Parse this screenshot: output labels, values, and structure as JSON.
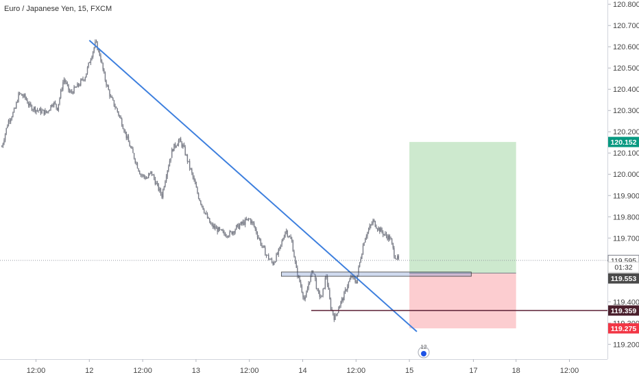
{
  "chart_data": {
    "type": "candlestick",
    "title": "Euro / Japanese Yen, 15, FXCM",
    "ylim": [
      119.13,
      120.82
    ],
    "y_ticks": [
      "120.800",
      "120.700",
      "120.600",
      "120.500",
      "120.400",
      "120.300",
      "120.200",
      "120.100",
      "120.000",
      "119.900",
      "119.800",
      "119.700",
      "119.600",
      "119.500",
      "119.400",
      "119.300",
      "119.200"
    ],
    "x_ticks": [
      {
        "label": "12:00",
        "t": 0.5
      },
      {
        "label": "12",
        "t": 1.0
      },
      {
        "label": "12:00",
        "t": 1.5
      },
      {
        "label": "13",
        "t": 2.0
      },
      {
        "label": "12:00",
        "t": 2.5
      },
      {
        "label": "14",
        "t": 3.0
      },
      {
        "label": "12:00",
        "t": 3.5
      },
      {
        "label": "15",
        "t": 4.0
      },
      {
        "label": "17",
        "t": 4.6
      },
      {
        "label": "18",
        "t": 5.0
      },
      {
        "label": "12:00",
        "t": 5.5
      }
    ],
    "series": [
      {
        "points": [
          [
            0.18,
            120.13
          ],
          [
            0.24,
            120.25
          ],
          [
            0.3,
            120.3
          ],
          [
            0.34,
            120.38
          ],
          [
            0.4,
            120.36
          ],
          [
            0.44,
            120.32
          ],
          [
            0.52,
            120.3
          ],
          [
            0.6,
            120.29
          ],
          [
            0.66,
            120.34
          ],
          [
            0.7,
            120.31
          ],
          [
            0.76,
            120.45
          ],
          [
            0.82,
            120.38
          ],
          [
            0.9,
            120.42
          ],
          [
            0.96,
            120.46
          ],
          [
            1.02,
            120.56
          ],
          [
            1.06,
            120.62
          ],
          [
            1.1,
            120.56
          ],
          [
            1.14,
            120.46
          ],
          [
            1.2,
            120.36
          ],
          [
            1.26,
            120.3
          ],
          [
            1.3,
            120.25
          ],
          [
            1.36,
            120.16
          ],
          [
            1.42,
            120.08
          ],
          [
            1.48,
            120.0
          ],
          [
            1.54,
            119.98
          ],
          [
            1.58,
            120.01
          ],
          [
            1.64,
            119.94
          ],
          [
            1.68,
            119.9
          ],
          [
            1.72,
            120.0
          ],
          [
            1.78,
            120.12
          ],
          [
            1.84,
            120.16
          ],
          [
            1.88,
            120.13
          ],
          [
            1.93,
            120.05
          ],
          [
            1.98,
            119.97
          ],
          [
            2.02,
            119.9
          ],
          [
            2.06,
            119.85
          ],
          [
            2.1,
            119.8
          ],
          [
            2.14,
            119.76
          ],
          [
            2.2,
            119.74
          ],
          [
            2.26,
            119.72
          ],
          [
            2.32,
            119.72
          ],
          [
            2.38,
            119.75
          ],
          [
            2.44,
            119.77
          ],
          [
            2.5,
            119.79
          ],
          [
            2.54,
            119.76
          ],
          [
            2.58,
            119.71
          ],
          [
            2.62,
            119.66
          ],
          [
            2.66,
            119.62
          ],
          [
            2.72,
            119.58
          ],
          [
            2.78,
            119.64
          ],
          [
            2.84,
            119.74
          ],
          [
            2.9,
            119.68
          ],
          [
            2.94,
            119.55
          ],
          [
            2.98,
            119.48
          ],
          [
            3.02,
            119.4
          ],
          [
            3.06,
            119.5
          ],
          [
            3.1,
            119.55
          ],
          [
            3.14,
            119.44
          ],
          [
            3.18,
            119.42
          ],
          [
            3.22,
            119.53
          ],
          [
            3.26,
            119.38
          ],
          [
            3.3,
            119.32
          ],
          [
            3.34,
            119.38
          ],
          [
            3.38,
            119.42
          ],
          [
            3.42,
            119.48
          ],
          [
            3.46,
            119.52
          ],
          [
            3.5,
            119.49
          ],
          [
            3.54,
            119.6
          ],
          [
            3.58,
            119.7
          ],
          [
            3.62,
            119.74
          ],
          [
            3.66,
            119.78
          ],
          [
            3.7,
            119.75
          ],
          [
            3.74,
            119.73
          ],
          [
            3.78,
            119.71
          ],
          [
            3.82,
            119.7
          ],
          [
            3.86,
            119.62
          ],
          [
            3.9,
            119.595
          ]
        ]
      }
    ],
    "annotations": {
      "trendline_start": [
        1.0,
        120.63
      ],
      "trendline_end": [
        4.07,
        119.26
      ],
      "zone_top": 119.54,
      "zone_bottom": 119.52,
      "zone_x": [
        2.8,
        4.58
      ],
      "horizontal_level": 119.359,
      "horizontal_level_x_start": 3.08,
      "position_x": [
        4.0,
        5.0
      ],
      "position_target": 120.152,
      "position_entry": 119.535,
      "position_stop": 119.275,
      "last_price": 119.595
    },
    "price_tags": [
      {
        "label": "120.152",
        "value": 120.152,
        "color": "#089981"
      },
      {
        "label": "119.595",
        "value": 119.595,
        "color": "#ffffff",
        "border": "#787b86",
        "text_color": "#333333"
      },
      {
        "label": "01:32",
        "value": 119.563,
        "color": "#ffffff",
        "border": "#cccccc",
        "text_color": "#333333"
      },
      {
        "label": "119.553",
        "value": 119.51,
        "color": "#4a4a4a"
      },
      {
        "label": "119.359",
        "value": 119.359,
        "color": "#4a1f2c"
      },
      {
        "label": "119.275",
        "value": 119.275,
        "color": "#f23645"
      }
    ],
    "watermark": "12"
  }
}
